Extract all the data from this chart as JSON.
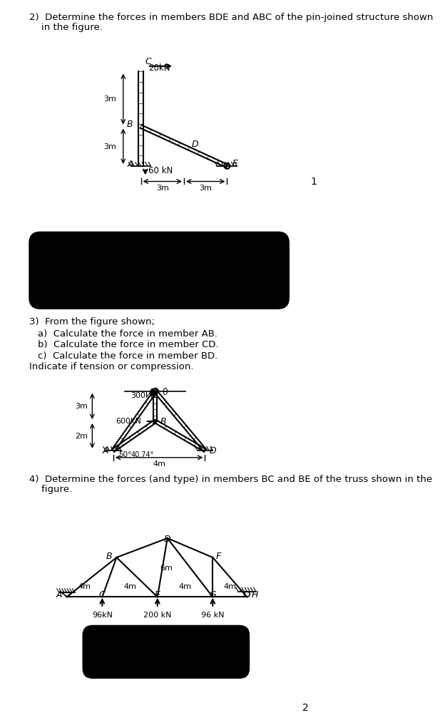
{
  "page_bg": "#ffffff",
  "q2_title_line1": "2)  Determine the forces in members BDE and ABC of the pin-joined structure shown",
  "q2_title_line2": "    in the figure.",
  "q3_title": "3)  From the figure shown;",
  "q3_a": "a)  Calculate the force in member AB.",
  "q3_b": "b)  Calculate the force in member CD.",
  "q3_c": "c)  Calculate the force in member BD.",
  "q3_indicate": "Indicate if tension or compression.",
  "q4_title_line1": "4)  Determine the forces (and type) in members BC and BE of the truss shown in the",
  "q4_title_line2": "    figure.",
  "page_number": "2"
}
